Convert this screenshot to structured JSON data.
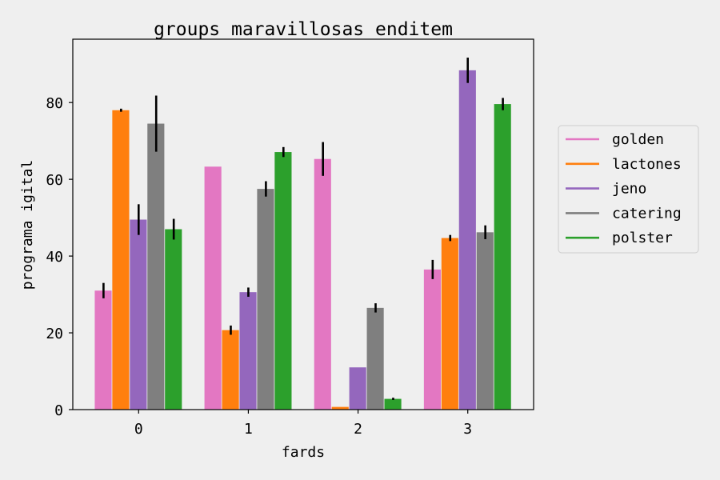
{
  "chart_data": {
    "type": "bar",
    "title": "groups maravillosas enditem",
    "xlabel": "fards",
    "ylabel": "programa igital",
    "categories": [
      "0",
      "1",
      "2",
      "3"
    ],
    "ylim": [
      0,
      96.5
    ],
    "yticks": [
      0,
      20,
      40,
      60,
      80
    ],
    "grid": false,
    "legend_position": "right",
    "series": [
      {
        "name": "golden",
        "color": "#e377c2",
        "values": [
          31,
          63.3,
          65.3,
          36.5
        ],
        "errors": [
          2.0,
          0.0,
          4.4,
          2.5
        ]
      },
      {
        "name": "lactones",
        "color": "#ff7f0e",
        "values": [
          78,
          20.7,
          0.7,
          44.7
        ],
        "errors": [
          0.4,
          1.2,
          0.0,
          0.8
        ]
      },
      {
        "name": "jeno",
        "color": "#9467bd",
        "values": [
          49.5,
          30.6,
          11.0,
          88.4
        ],
        "errors": [
          4.0,
          1.2,
          0.0,
          3.3
        ]
      },
      {
        "name": "catering",
        "color": "#7f7f7f",
        "values": [
          74.5,
          57.5,
          26.5,
          46.2
        ],
        "errors": [
          7.3,
          2.0,
          1.2,
          1.8
        ]
      },
      {
        "name": "polster",
        "color": "#2ca02c",
        "values": [
          47,
          67.1,
          2.8,
          79.6
        ],
        "errors": [
          2.7,
          1.3,
          0.3,
          1.6
        ]
      }
    ]
  }
}
